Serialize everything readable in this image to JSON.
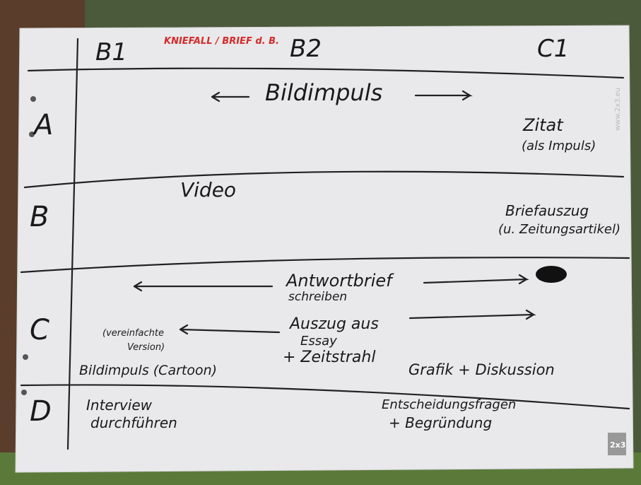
{
  "header": {
    "note": "KNIEFALL / BRIEF d. B.",
    "columns": [
      "B1",
      "B2",
      "C1"
    ]
  },
  "rows": [
    {
      "label": "A",
      "items": [
        "Bildimpuls",
        "Zitat",
        "(als Impuls)"
      ]
    },
    {
      "label": "B",
      "items": [
        "Video",
        "Briefauszug",
        "(u. Zeitungsartikel)"
      ]
    },
    {
      "label": "C",
      "items": [
        "Antwortbrief",
        "schreiben",
        "Auszug aus",
        "Essay",
        "+ Zeitstrahl",
        "(vereinfachte",
        "Version)",
        "Bildimpuls (Cartoon)",
        "Grafik + Diskussion"
      ]
    },
    {
      "label": "D",
      "items": [
        "Interview",
        "durchführen",
        "Entscheidungsfragen",
        "+ Begründung"
      ]
    }
  ],
  "watermark": {
    "url": "www.2x3.eu",
    "logo": "2x3"
  }
}
